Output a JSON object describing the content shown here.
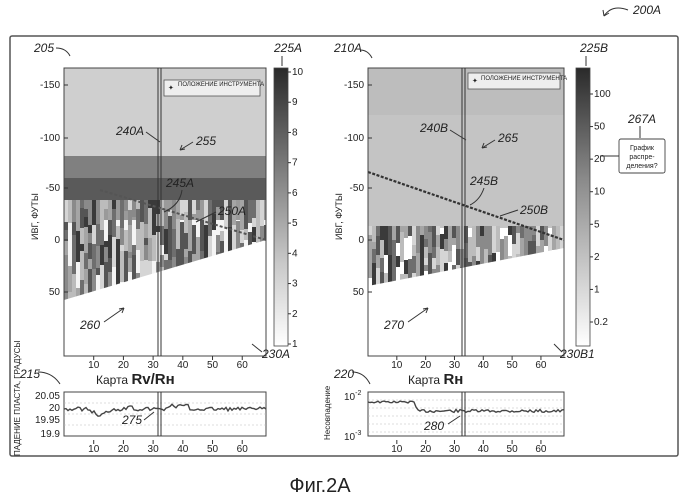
{
  "figure": {
    "label": "Фиг.2А",
    "ref_main": "200A",
    "frame_refs": [
      "205",
      "210A"
    ]
  },
  "left_panel": {
    "colorbar_ref": "225A",
    "colorbar_bottom_ref": "230A",
    "colorbar_ticks": [
      "10",
      "9",
      "8",
      "7",
      "6",
      "5",
      "4",
      "3",
      "2",
      "1"
    ],
    "legend": "ПОЛОЖЕНИЕ ИНСТРУМЕНТА",
    "ylabel": "ИВГ, ФУТЫ",
    "yticks": [
      "-150",
      "-100",
      "-50",
      "0",
      "50"
    ],
    "xticks": [
      "10",
      "20",
      "30",
      "40",
      "50",
      "60"
    ],
    "xlabel_prefix": "Карта ",
    "xlabel_big": "Rv/Rн",
    "refs": {
      "r240": "240A",
      "r255": "255",
      "r245": "245A",
      "r250": "250A",
      "r260": "260"
    }
  },
  "right_panel": {
    "colorbar_ref": "225B",
    "colorbar_bottom_ref": "230B1",
    "colorbar_ticks": [
      "100",
      "50",
      "20",
      "10",
      "5",
      "2",
      "1",
      "0.2"
    ],
    "legend": "ПОЛОЖЕНИЕ ИНСТРУМЕНТА",
    "ylabel": "ИВГ, ФУТЫ",
    "yticks": [
      "-150",
      "-100",
      "-50",
      "0",
      "50"
    ],
    "xticks": [
      "10",
      "20",
      "30",
      "40",
      "50",
      "60"
    ],
    "xlabel_prefix": "Карта ",
    "xlabel_big": "Rн",
    "refs": {
      "r240": "240B",
      "r265": "265",
      "r245": "245B",
      "r250": "250B",
      "r270": "270"
    },
    "callout_ref": "267A",
    "callout_text": [
      "График",
      "распре-",
      "деления?"
    ]
  },
  "bottom_left": {
    "ref": "215",
    "ylabel": "ПАДЕНИЕ ПЛАСТА, ГРАДУСЫ",
    "yticks": [
      "20.05",
      "20",
      "19.95",
      "19.9"
    ],
    "xticks": [
      "10",
      "20",
      "30",
      "40",
      "50",
      "60"
    ],
    "ref_curve": "275"
  },
  "bottom_right": {
    "ref": "220",
    "ylabel": "Несовпадение",
    "ytick_top_base": "10",
    "ytick_top_exp": "-2",
    "ytick_bottom_base": "10",
    "ytick_bottom_exp": "-3",
    "xticks": [
      "10",
      "20",
      "30",
      "40",
      "50",
      "60"
    ],
    "ref_curve": "280"
  },
  "colors": {
    "ink": "#222222",
    "light_gray": "#d6d6d6",
    "mid_gray": "#a8a8a8",
    "dark_gray": "#555555"
  }
}
